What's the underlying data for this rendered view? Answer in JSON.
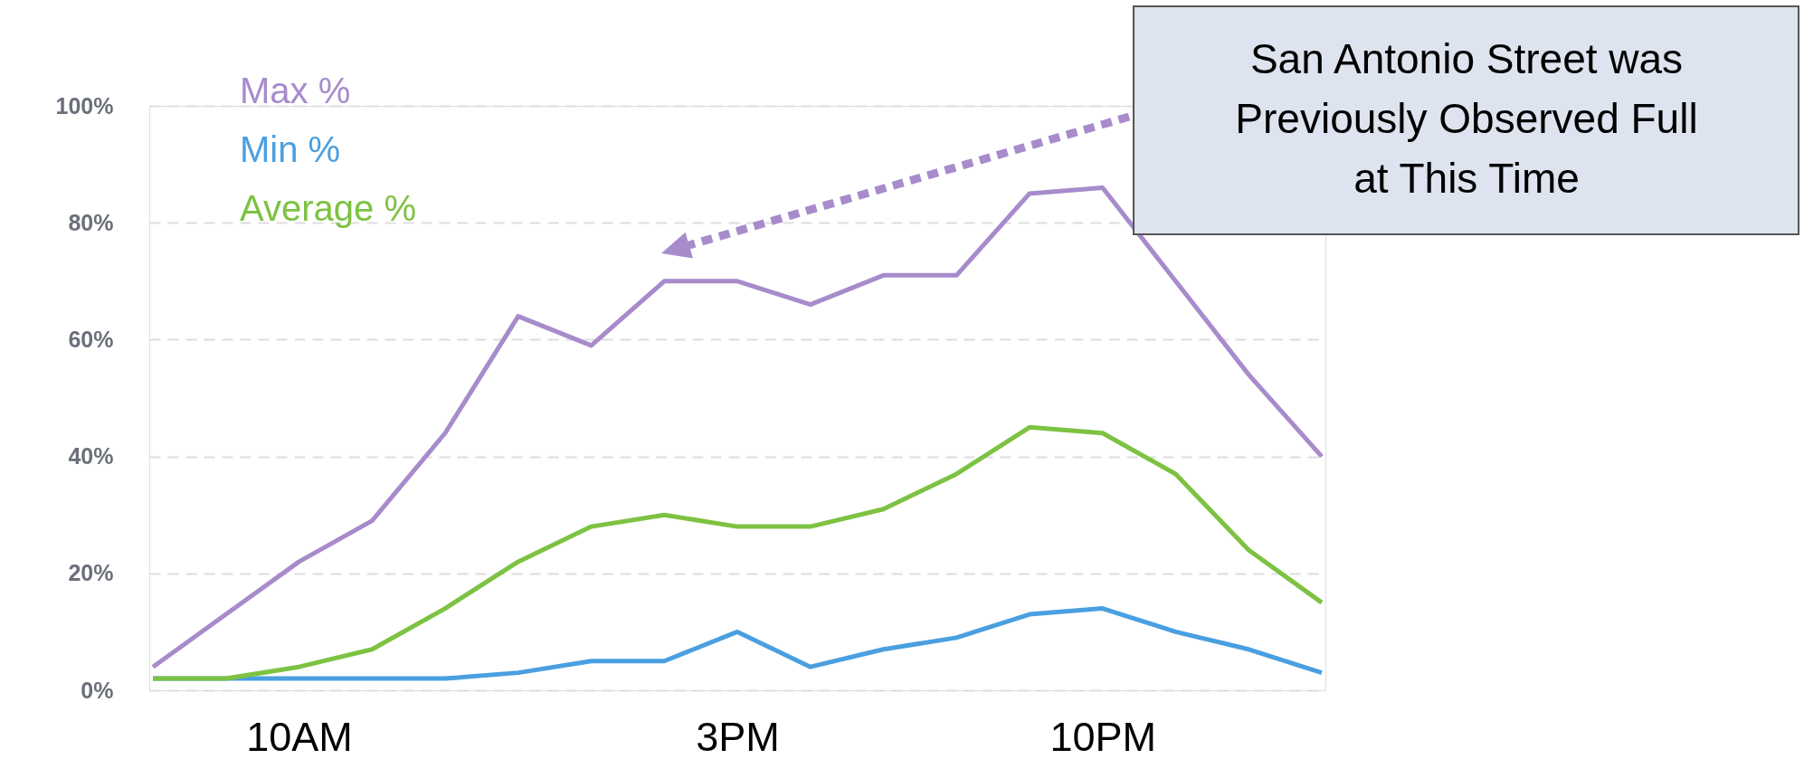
{
  "chart_data": {
    "type": "line",
    "categories": [
      null,
      null,
      "10AM",
      null,
      null,
      null,
      null,
      null,
      "3PM",
      null,
      null,
      null,
      null,
      "10PM",
      null,
      null,
      null
    ],
    "series": [
      {
        "name": "Max %",
        "color": "#a78bcb",
        "values": [
          4,
          13,
          22,
          29,
          44,
          64,
          59,
          70,
          70,
          66,
          71,
          71,
          85,
          86,
          70,
          54,
          40
        ]
      },
      {
        "name": "Min %",
        "color": "#4a9fe0",
        "values": [
          2,
          2,
          2,
          2,
          2,
          3,
          5,
          5,
          10,
          4,
          7,
          9,
          13,
          14,
          10,
          7,
          3
        ]
      },
      {
        "name": "Average %",
        "color": "#7dc242",
        "values": [
          2,
          2,
          4,
          7,
          14,
          22,
          28,
          30,
          28,
          28,
          31,
          37,
          45,
          44,
          37,
          24,
          15
        ]
      }
    ],
    "ylim": [
      0,
      100
    ],
    "yticks": [
      {
        "value": 0,
        "label": "0%"
      },
      {
        "value": 20,
        "label": "20%"
      },
      {
        "value": 40,
        "label": "40%"
      },
      {
        "value": 60,
        "label": "60%"
      },
      {
        "value": 80,
        "label": "80%"
      },
      {
        "value": 100,
        "label": "100%"
      }
    ],
    "grid": "y",
    "legend": "top left",
    "marker": "none",
    "line_style": "solid",
    "annotations": [
      "San Antonio Street was\nPreviously Observed Full\nat This Time"
    ]
  }
}
